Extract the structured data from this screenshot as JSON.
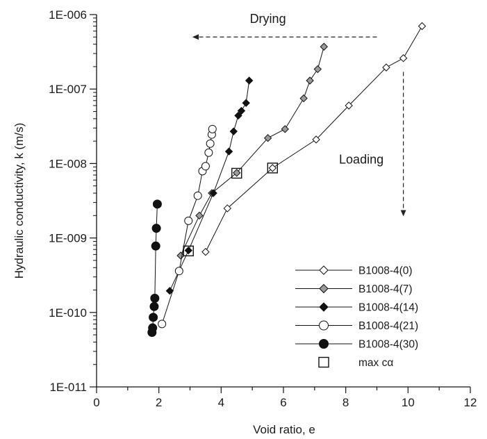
{
  "chart_data": {
    "type": "scatter",
    "xlabel": "Void ratio, e",
    "ylabel": "Hydraulic conductivity, k (m/s)",
    "xlim": [
      0,
      12
    ],
    "ylim_log10": [
      -11,
      -6
    ],
    "y_scale": "log",
    "x_ticks": [
      0,
      2,
      4,
      6,
      8,
      10,
      12
    ],
    "x_tick_labels": [
      "0",
      "2",
      "4",
      "6",
      "8",
      "10",
      "12"
    ],
    "y_ticks_log10": [
      -6,
      -7,
      -8,
      -9,
      -10,
      -11
    ],
    "y_tick_labels": [
      "1E-006",
      "1E-007",
      "1E-008",
      "1E-009",
      "1E-010",
      "1E-011"
    ],
    "grid": false,
    "legend_position": "bottom-right",
    "series": [
      {
        "name": "B1008-4(0)",
        "marker": "diamond",
        "fill": "#ffffff",
        "points": [
          [
            3.5,
            6.5e-10
          ],
          [
            4.2,
            2.5e-09
          ],
          [
            5.65,
            8.7e-09
          ],
          [
            7.05,
            2.1e-08
          ],
          [
            8.1,
            6e-08
          ],
          [
            9.3,
            1.95e-07
          ],
          [
            9.85,
            2.6e-07
          ],
          [
            10.45,
            7e-07
          ]
        ]
      },
      {
        "name": "B1008-4(7)",
        "marker": "diamond",
        "fill": "#9a9a9a",
        "points": [
          [
            2.7,
            5.8e-10
          ],
          [
            3.3,
            2e-09
          ],
          [
            3.7,
            4e-09
          ],
          [
            4.5,
            7.5e-09
          ],
          [
            5.5,
            2.2e-08
          ],
          [
            6.05,
            2.9e-08
          ],
          [
            6.65,
            7.5e-08
          ],
          [
            6.85,
            1.3e-07
          ],
          [
            7.1,
            1.85e-07
          ],
          [
            7.3,
            3.7e-07
          ]
        ]
      },
      {
        "name": "B1008-4(14)",
        "marker": "diamond",
        "fill": "#111111",
        "points": [
          [
            2.35,
            1.95e-10
          ],
          [
            2.95,
            6.8e-10
          ],
          [
            3.75,
            4e-09
          ],
          [
            4.25,
            1.45e-08
          ],
          [
            4.4,
            2.7e-08
          ],
          [
            4.55,
            4.4e-08
          ],
          [
            4.65,
            5.1e-08
          ],
          [
            4.8,
            6.5e-08
          ],
          [
            4.9,
            1.3e-07
          ]
        ]
      },
      {
        "name": "B1008-4(21)",
        "marker": "circle",
        "fill": "#ffffff",
        "points": [
          [
            2.1,
            7e-11
          ],
          [
            2.65,
            3.6e-10
          ],
          [
            2.95,
            1.7e-09
          ],
          [
            3.25,
            3.7e-09
          ],
          [
            3.4,
            7.9e-09
          ],
          [
            3.5,
            9.2e-09
          ],
          [
            3.6,
            1.4e-08
          ],
          [
            3.65,
            1.85e-08
          ],
          [
            3.7,
            2.45e-08
          ],
          [
            3.72,
            2.9e-08
          ]
        ]
      },
      {
        "name": "B1008-4(30)",
        "marker": "circle",
        "fill": "#111111",
        "points": [
          [
            1.78,
            5.4e-11
          ],
          [
            1.8,
            6.2e-11
          ],
          [
            1.82,
            8.6e-11
          ],
          [
            1.85,
            1.2e-10
          ],
          [
            1.87,
            1.55e-10
          ],
          [
            1.9,
            7.8e-10
          ],
          [
            1.92,
            1.35e-09
          ],
          [
            1.95,
            2.85e-09
          ]
        ]
      }
    ],
    "max_c_alpha": {
      "name": "max cα",
      "points": [
        [
          2.95,
          6.7e-10
        ],
        [
          4.5,
          7.4e-09
        ],
        [
          5.65,
          8.7e-09
        ]
      ]
    },
    "annotations": [
      {
        "text": "Drying",
        "arrow": "left",
        "from": [
          9.0,
          5e-07
        ],
        "to": [
          3.1,
          5e-07
        ],
        "label_at": [
          5.5,
          1e-06
        ]
      },
      {
        "text": "Loading",
        "arrow": "down",
        "from": [
          9.85,
          1.7e-07
        ],
        "to": [
          9.85,
          2e-09
        ],
        "label_at": [
          8.5,
          1e-08
        ]
      }
    ]
  }
}
